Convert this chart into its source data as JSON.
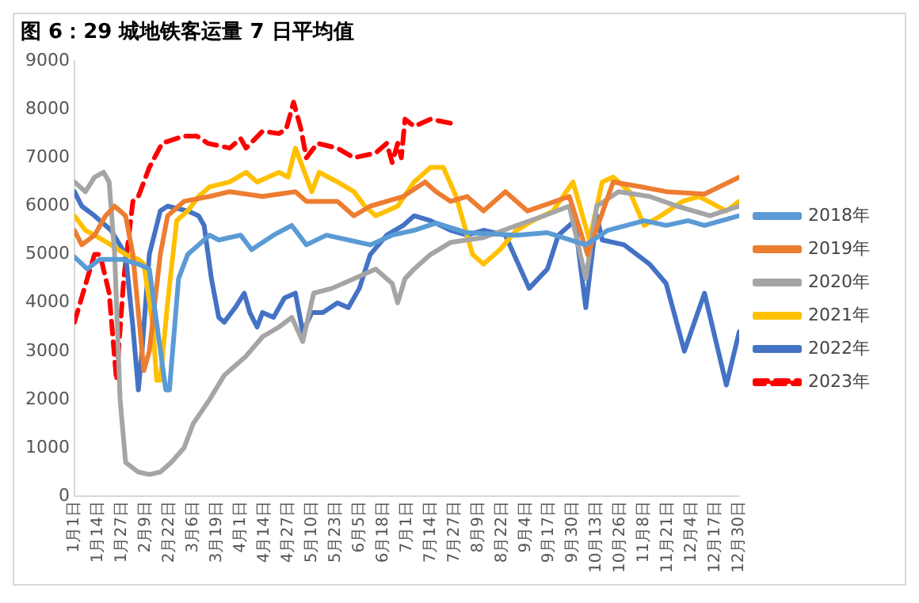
{
  "chart_data": {
    "type": "line",
    "title": "图 6：29 城地铁客运量 7 日平均值",
    "xlim": [
      "--01-01",
      "--12-30"
    ],
    "xticks": [
      {
        "value": "--01-01",
        "label": "1月1日"
      },
      {
        "value": "--01-14",
        "label": "1月14日"
      },
      {
        "value": "--01-27",
        "label": "1月27日"
      },
      {
        "value": "--02-09",
        "label": "2月9日"
      },
      {
        "value": "--02-22",
        "label": "2月22日"
      },
      {
        "value": "--03-06",
        "label": "3月6日"
      },
      {
        "value": "--03-19",
        "label": "3月19日"
      },
      {
        "value": "--04-01",
        "label": "4月1日"
      },
      {
        "value": "--04-14",
        "label": "4月14日"
      },
      {
        "value": "--04-27",
        "label": "4月27日"
      },
      {
        "value": "--05-10",
        "label": "5月10日"
      },
      {
        "value": "--05-23",
        "label": "5月23日"
      },
      {
        "value": "--06-05",
        "label": "6月5日"
      },
      {
        "value": "--06-18",
        "label": "6月18日"
      },
      {
        "value": "--07-01",
        "label": "7月1日"
      },
      {
        "value": "--07-14",
        "label": "7月14日"
      },
      {
        "value": "--07-27",
        "label": "7月27日"
      },
      {
        "value": "--08-09",
        "label": "8月9日"
      },
      {
        "value": "--08-22",
        "label": "8月22日"
      },
      {
        "value": "--09-04",
        "label": "9月4日"
      },
      {
        "value": "--09-17",
        "label": "9月17日"
      },
      {
        "value": "--09-30",
        "label": "9月30日"
      },
      {
        "value": "--10-13",
        "label": "10月13日"
      },
      {
        "value": "--10-26",
        "label": "10月26日"
      },
      {
        "value": "--11-08",
        "label": "11月8日"
      },
      {
        "value": "--11-21",
        "label": "11月21日"
      },
      {
        "value": "--12-04",
        "label": "12月4日"
      },
      {
        "value": "--12-17",
        "label": "12月17日"
      },
      {
        "value": "--12-30",
        "label": "12月30日"
      }
    ],
    "ylim": [
      0,
      9000
    ],
    "yticks": [
      0,
      1000,
      2000,
      3000,
      4000,
      5000,
      6000,
      7000,
      8000,
      9000
    ],
    "grid": false,
    "legend": "right",
    "marker": "none",
    "line_style": "solid",
    "series": [
      {
        "name": "2018年",
        "color": "#5b9bd5",
        "x": [
          "--01-01",
          "--01-08",
          "--01-15",
          "--01-27",
          "--02-05",
          "--02-11",
          "--02-20",
          "--02-22",
          "--02-27",
          "--03-03",
          "--03-15",
          "--03-20",
          "--04-01",
          "--04-07",
          "--04-19",
          "--04-29",
          "--05-07",
          "--05-18",
          "--05-30",
          "--06-11",
          "--06-23",
          "--07-05",
          "--07-17",
          "--08-03",
          "--08-30",
          "--09-16",
          "--10-07",
          "--10-19",
          "--11-08",
          "--11-20",
          "--12-02",
          "--12-11",
          "--12-30"
        ],
        "values": [
          4950,
          4700,
          4900,
          4900,
          4800,
          4700,
          2200,
          2200,
          4500,
          5000,
          5400,
          5300,
          5400,
          5100,
          5400,
          5600,
          5200,
          5400,
          5300,
          5200,
          5400,
          5500,
          5650,
          5450,
          5400,
          5450,
          5200,
          5500,
          5700,
          5600,
          5700,
          5600,
          5800
        ]
      },
      {
        "name": "2019年",
        "color": "#ed7d31",
        "x": [
          "--01-01",
          "--01-05",
          "--01-12",
          "--01-18",
          "--01-23",
          "--01-29",
          "--02-02",
          "--02-08",
          "--02-11",
          "--02-17",
          "--02-21",
          "--03-01",
          "--03-15",
          "--03-26",
          "--04-13",
          "--05-01",
          "--05-07",
          "--05-24",
          "--06-02",
          "--06-11",
          "--06-29",
          "--07-11",
          "--07-17",
          "--07-25",
          "--08-03",
          "--08-12",
          "--08-24",
          "--09-05",
          "--09-28",
          "--10-08",
          "--10-22",
          "--11-06",
          "--11-20",
          "--12-11",
          "--12-30"
        ],
        "values": [
          5500,
          5200,
          5400,
          5800,
          6000,
          5800,
          5000,
          2600,
          3000,
          5000,
          5800,
          6100,
          6200,
          6300,
          6200,
          6300,
          6100,
          6100,
          5800,
          6000,
          6200,
          6500,
          6300,
          6100,
          6200,
          5900,
          6300,
          5900,
          6200,
          5000,
          6500,
          6400,
          6300,
          6250,
          6600
        ]
      },
      {
        "name": "2020年",
        "color": "#a5a5a5",
        "x": [
          "--01-01",
          "--01-07",
          "--01-12",
          "--01-17",
          "--01-20",
          "--01-23",
          "--01-26",
          "--01-29",
          "--02-05",
          "--02-11",
          "--02-17",
          "--02-23",
          "--03-01",
          "--03-06",
          "--03-15",
          "--03-23",
          "--04-04",
          "--04-13",
          "--04-22",
          "--04-29",
          "--05-05",
          "--05-11",
          "--05-21",
          "--06-02",
          "--06-14",
          "--06-23",
          "--06-26",
          "--06-30",
          "--07-05",
          "--07-14",
          "--07-25",
          "--08-12",
          "--08-30",
          "--09-14",
          "--09-28",
          "--10-07",
          "--10-13",
          "--10-25",
          "--11-11",
          "--11-26",
          "--12-14",
          "--12-30"
        ],
        "values": [
          6500,
          6300,
          6600,
          6700,
          6500,
          5000,
          2000,
          700,
          500,
          450,
          500,
          700,
          1000,
          1500,
          2000,
          2500,
          2900,
          3300,
          3500,
          3700,
          3200,
          4200,
          4300,
          4500,
          4700,
          4400,
          4000,
          4500,
          4700,
          5000,
          5250,
          5350,
          5600,
          5800,
          6000,
          4500,
          6000,
          6300,
          6200,
          6000,
          5800,
          6000
        ]
      },
      {
        "name": "2021年",
        "color": "#ffc000",
        "x": [
          "--01-01",
          "--01-07",
          "--01-12",
          "--01-21",
          "--01-29",
          "--02-05",
          "--02-08",
          "--02-13",
          "--02-15",
          "--02-17",
          "--02-21",
          "--02-26",
          "--03-03",
          "--03-09",
          "--03-15",
          "--03-26",
          "--04-04",
          "--04-10",
          "--04-22",
          "--04-27",
          "--05-01",
          "--05-07",
          "--05-10",
          "--05-14",
          "--05-24",
          "--06-02",
          "--06-08",
          "--06-14",
          "--06-26",
          "--07-05",
          "--07-14",
          "--07-21",
          "--07-28",
          "--08-06",
          "--08-12",
          "--08-21",
          "--08-30",
          "--09-08",
          "--09-19",
          "--09-30",
          "--10-09",
          "--10-16",
          "--10-22",
          "--10-31",
          "--11-08",
          "--11-17",
          "--11-29",
          "--12-08",
          "--12-23",
          "--12-30"
        ],
        "values": [
          5800,
          5500,
          5400,
          5200,
          5000,
          4900,
          4800,
          3500,
          2400,
          2400,
          4000,
          5700,
          5900,
          6200,
          6400,
          6500,
          6700,
          6500,
          6700,
          6600,
          7200,
          6600,
          6300,
          6700,
          6500,
          6300,
          6000,
          5800,
          6000,
          6500,
          6800,
          6800,
          6200,
          5000,
          4800,
          5100,
          5500,
          5700,
          5900,
          6500,
          5300,
          6500,
          6600,
          6300,
          5600,
          5800,
          6100,
          6200,
          5900,
          6100
        ]
      },
      {
        "name": "2022年",
        "color": "#4472c4",
        "x": [
          "--01-01",
          "--01-05",
          "--01-12",
          "--01-21",
          "--01-29",
          "--02-02",
          "--02-05",
          "--02-07",
          "--02-11",
          "--02-17",
          "--02-21",
          "--03-03",
          "--03-09",
          "--03-12",
          "--03-16",
          "--03-20",
          "--03-23",
          "--03-29",
          "--04-03",
          "--04-06",
          "--04-10",
          "--04-13",
          "--04-19",
          "--04-25",
          "--05-01",
          "--05-05",
          "--05-10",
          "--05-16",
          "--05-24",
          "--05-30",
          "--06-05",
          "--06-11",
          "--06-20",
          "--06-29",
          "--07-05",
          "--07-14",
          "--07-25",
          "--08-03",
          "--08-12",
          "--08-24",
          "--09-06",
          "--09-11",
          "--09-16",
          "--09-22",
          "--10-01",
          "--10-07",
          "--10-13",
          "--10-16",
          "--10-28",
          "--11-11",
          "--11-20",
          "--11-30",
          "--12-11",
          "--12-23",
          "--12-30"
        ],
        "values": [
          6300,
          6000,
          5800,
          5500,
          5000,
          3500,
          2200,
          3000,
          5000,
          5900,
          6000,
          5900,
          5800,
          5600,
          4500,
          3700,
          3600,
          3900,
          4200,
          3800,
          3500,
          3800,
          3700,
          4100,
          4200,
          3400,
          3800,
          3800,
          4000,
          3900,
          4300,
          5000,
          5400,
          5600,
          5800,
          5700,
          5500,
          5400,
          5500,
          5400,
          4300,
          4500,
          4700,
          5400,
          5700,
          3900,
          5800,
          5300,
          5200,
          4800,
          4400,
          3000,
          4200,
          2300,
          3400
        ]
      },
      {
        "name": "2023年",
        "color": "#ff0000",
        "line_style": "dashed",
        "x": [
          "--01-01",
          "--01-08",
          "--01-12",
          "--01-15",
          "--01-20",
          "--01-24",
          "--01-28",
          "--02-02",
          "--02-05",
          "--02-11",
          "--02-18",
          "--03-01",
          "--03-08",
          "--03-14",
          "--03-26",
          "--04-01",
          "--04-04",
          "--04-13",
          "--04-22",
          "--04-26",
          "--04-30",
          "--05-04",
          "--05-07",
          "--05-13",
          "--05-24",
          "--06-02",
          "--06-14",
          "--06-20",
          "--06-23",
          "--06-26",
          "--06-28",
          "--06-30",
          "--07-05",
          "--07-14",
          "--07-27"
        ],
        "values": [
          3600,
          4500,
          5000,
          5000,
          4200,
          2400,
          4500,
          6100,
          6200,
          6800,
          7300,
          7450,
          7450,
          7300,
          7200,
          7400,
          7200,
          7550,
          7500,
          7600,
          8150,
          7600,
          7000,
          7300,
          7200,
          7000,
          7100,
          7300,
          6900,
          7300,
          7000,
          7800,
          7650,
          7800,
          7700
        ]
      }
    ]
  }
}
